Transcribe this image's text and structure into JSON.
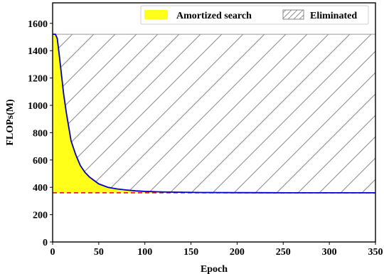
{
  "chart_data": {
    "type": "area",
    "xlabel": "Epoch",
    "ylabel": "FLOPs(M)",
    "xlim": [
      0,
      350
    ],
    "ylim": [
      0,
      1750
    ],
    "xticks": [
      "0",
      "50",
      "100",
      "150",
      "200",
      "250",
      "300",
      "350"
    ],
    "yticks": [
      "0",
      "200",
      "400",
      "600",
      "800",
      "1000",
      "1200",
      "1400",
      "1600"
    ],
    "grid": false,
    "legend_position": "top",
    "legend": [
      {
        "label": "Amortized search",
        "style": "filled",
        "color": "#ffff1a"
      },
      {
        "label": "Eliminated",
        "style": "hatched",
        "color": "#888888"
      }
    ],
    "upper_bound": 1520,
    "lower_bound": 360,
    "colors": {
      "curve": "#0000cc",
      "baseline": "#e8202a",
      "fill": "#ffff1a",
      "hatch": "#8a8a8a"
    },
    "curve": {
      "x": [
        0,
        3,
        5,
        7,
        10,
        12,
        15,
        18,
        20,
        25,
        30,
        35,
        40,
        45,
        50,
        60,
        70,
        80,
        90,
        100,
        120,
        140,
        160,
        200,
        250,
        300,
        350
      ],
      "y": [
        1520,
        1520,
        1490,
        1380,
        1200,
        1080,
        940,
        820,
        740,
        640,
        560,
        510,
        475,
        450,
        425,
        400,
        388,
        380,
        374,
        370,
        366,
        364,
        362,
        361,
        360,
        360,
        360
      ]
    }
  }
}
